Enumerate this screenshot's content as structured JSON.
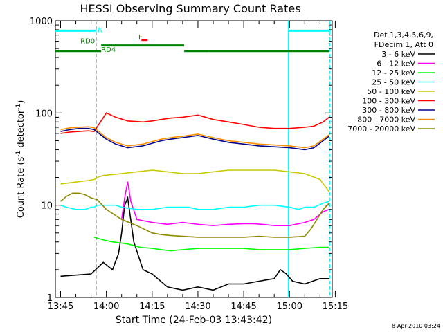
{
  "chart_data": {
    "type": "line",
    "title": "HESSI Observing Summary Count Rates",
    "xlabel": "Start Time (24-Feb-03 13:43:42)",
    "ylabel_main": "Count Rate (s",
    "ylabel_sup1": "-1",
    "ylabel_mid": " detector",
    "ylabel_sup2": "-1",
    "ylabel_end": ")",
    "footer": "8-Apr-2010 03:24",
    "x_ticks": [
      "13:45",
      "14:00",
      "14:15",
      "14:30",
      "14:45",
      "15:00",
      "15:15"
    ],
    "y_ticks": [
      "1",
      "10",
      "100",
      "1000"
    ],
    "xlim_min": [
      -1.7,
      89.0
    ],
    "ylim": [
      1,
      1000
    ],
    "y_scale": "log",
    "legend_header": [
      "Det 1,3,4,5,6,9,",
      "FDecim 1, Att 0"
    ],
    "legend_placement": "right",
    "series": [
      {
        "name": "3 - 6 keV",
        "color": "#000000",
        "x": [
          0,
          10,
          14,
          17,
          19,
          20,
          21,
          22,
          24,
          27,
          30,
          35,
          40,
          45,
          50,
          55,
          60,
          65,
          70,
          72,
          74,
          76,
          80,
          85,
          88
        ],
        "y": [
          1.7,
          1.8,
          2.4,
          2.0,
          3.0,
          5.0,
          10,
          12,
          4,
          2,
          1.8,
          1.3,
          1.2,
          1.3,
          1.2,
          1.4,
          1.4,
          1.5,
          1.6,
          2.0,
          1.8,
          1.5,
          1.4,
          1.6,
          1.6
        ]
      },
      {
        "name": "6 - 12 keV",
        "color": "#ff00ff",
        "x": [
          20,
          21,
          22,
          23,
          25,
          30,
          35,
          40,
          45,
          50,
          55,
          60,
          63,
          66,
          70,
          75,
          80,
          83,
          86,
          88
        ],
        "y": [
          7,
          12,
          18,
          11,
          7,
          6.5,
          6.2,
          6.5,
          6.2,
          6.0,
          6.2,
          6.3,
          6.3,
          6.2,
          6.0,
          6.0,
          6.5,
          7,
          8.5,
          9
        ]
      },
      {
        "name": "12 - 25 keV",
        "color": "#00ff00",
        "x": [
          11,
          14,
          17,
          22,
          26,
          30,
          33,
          36,
          40,
          45,
          50,
          55,
          60,
          65,
          70,
          75,
          80,
          85,
          88
        ],
        "y": [
          4.5,
          4.2,
          4.0,
          3.8,
          3.5,
          3.4,
          3.3,
          3.2,
          3.3,
          3.4,
          3.4,
          3.4,
          3.4,
          3.3,
          3.3,
          3.3,
          3.4,
          3.5,
          3.5
        ]
      },
      {
        "name": "25 - 50 keV",
        "color": "#00ffff",
        "x": [
          0,
          2,
          5,
          8,
          10,
          11,
          12,
          14,
          16,
          18,
          20,
          25,
          30,
          35,
          40,
          42,
          45,
          50,
          55,
          60,
          65,
          70,
          75,
          78,
          80,
          83,
          86,
          88
        ],
        "y": [
          10,
          9.5,
          9.0,
          9.0,
          9.5,
          9.5,
          10,
          10,
          10,
          10,
          9.5,
          9,
          9,
          9.5,
          9.5,
          9.5,
          9,
          9,
          9.5,
          9.5,
          10,
          10,
          9.5,
          9,
          9.5,
          9.5,
          10.5,
          11
        ]
      },
      {
        "name": "50 - 100 keV",
        "color": "#c8c800",
        "x": [
          0,
          3,
          6,
          9,
          11,
          12,
          14,
          17,
          20,
          25,
          30,
          35,
          40,
          45,
          50,
          55,
          60,
          65,
          70,
          75,
          80,
          85,
          88
        ],
        "y": [
          17,
          17.5,
          18,
          18.5,
          19,
          20,
          21,
          21.5,
          22,
          23,
          24,
          23,
          22,
          22,
          23,
          24,
          24,
          24,
          24,
          23,
          22,
          19,
          14
        ]
      },
      {
        "name": "100 - 300 keV",
        "color": "#ff0000",
        "x": [
          0,
          3,
          6,
          9,
          11,
          15,
          18,
          22,
          27,
          30,
          33,
          36,
          40,
          45,
          50,
          55,
          60,
          65,
          70,
          75,
          80,
          83,
          86,
          88
        ],
        "y": [
          60,
          62,
          63,
          64,
          63,
          100,
          90,
          82,
          80,
          82,
          85,
          88,
          90,
          95,
          85,
          80,
          75,
          70,
          68,
          68,
          70,
          72,
          80,
          90
        ]
      },
      {
        "name": "300 - 800 keV",
        "color": "#00008b",
        "x": [
          0,
          3,
          6,
          9,
          11,
          15,
          18,
          22,
          27,
          30,
          33,
          36,
          40,
          45,
          50,
          55,
          60,
          65,
          70,
          75,
          80,
          83,
          86,
          88
        ],
        "y": [
          63,
          66,
          68,
          68,
          66,
          52,
          46,
          42,
          44,
          47,
          50,
          52,
          54,
          57,
          52,
          48,
          46,
          44,
          43,
          42,
          40,
          42,
          50,
          56
        ]
      },
      {
        "name": "800 - 7000 keV",
        "color": "#ff8c00",
        "x": [
          0,
          3,
          6,
          9,
          11,
          15,
          18,
          22,
          27,
          30,
          33,
          36,
          40,
          45,
          50,
          55,
          60,
          65,
          70,
          75,
          80,
          83,
          86,
          88
        ],
        "y": [
          66,
          69,
          70,
          71,
          69,
          54,
          48,
          44,
          46,
          49,
          52,
          54,
          56,
          59,
          54,
          50,
          48,
          46,
          45,
          44,
          42,
          44,
          52,
          58
        ]
      },
      {
        "name": "7000 - 20000 keV",
        "color": "#8b8b00",
        "x": [
          0,
          2,
          4,
          6,
          8,
          10,
          12,
          15,
          20,
          25,
          30,
          33,
          36,
          40,
          45,
          50,
          55,
          60,
          65,
          70,
          75,
          80,
          82,
          84,
          86,
          88
        ],
        "y": [
          11,
          12.5,
          13.5,
          13.5,
          13.0,
          12,
          11.5,
          9,
          7,
          6,
          5,
          4.8,
          4.7,
          4.6,
          4.5,
          4.5,
          4.5,
          4.5,
          4.6,
          4.5,
          4.5,
          4.6,
          5.5,
          7,
          9,
          10.5
        ]
      }
    ],
    "annotations": [
      {
        "text": "N",
        "x": 12.2,
        "y": 750,
        "color": "#00ffff"
      },
      {
        "text": "RD0",
        "x": 6.5,
        "y": 570,
        "color": "#008000"
      },
      {
        "text": "RD4",
        "x": 13.3,
        "y": 460,
        "color": "#008000"
      },
      {
        "text": "F",
        "x": 25.5,
        "y": 630,
        "color": "#ff0000"
      }
    ],
    "markers": [
      {
        "name": "night-bar",
        "color": "#00ffff",
        "y": 780,
        "segments": [
          [
            -1.7,
            11.7
          ],
          [
            74.5,
            88.5
          ]
        ]
      },
      {
        "name": "decimation-bar-upper",
        "color": "#008000",
        "y": 540,
        "segments": [
          [
            13.3,
            40.5
          ]
        ]
      },
      {
        "name": "decimation-bar-lower",
        "color": "#008000",
        "y": 470,
        "segments": [
          [
            -1.7,
            13.3
          ],
          [
            40.5,
            48.5
          ],
          [
            48.5,
            88.0
          ]
        ]
      },
      {
        "name": "flare-bar",
        "color": "#ff0000",
        "y": 620,
        "segments": [
          [
            26.5,
            28.5
          ]
        ]
      }
    ],
    "vlines": [
      {
        "x": 11.8,
        "style": "dashed",
        "color": "#00ffff"
      },
      {
        "x": 74.6,
        "style": "solid",
        "color": "#00ffff"
      },
      {
        "x": 88.2,
        "style": "dashed",
        "color": "#00ffff"
      }
    ],
    "grid": false
  }
}
